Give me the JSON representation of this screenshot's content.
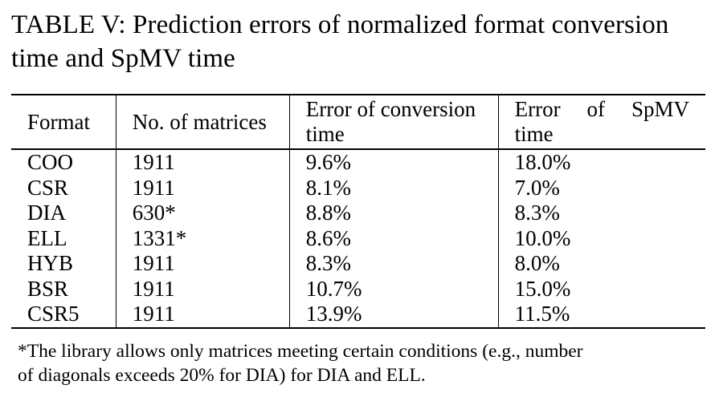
{
  "caption": {
    "line1": "TABLE V: Prediction errors of normalized format conversion",
    "line2": "time and SpMV time"
  },
  "table": {
    "headers": {
      "format": "Format",
      "matrices": "No. of matrices",
      "conversion_line1": "Error of conversion",
      "conversion_line2": "time",
      "spmv_word1": "Error",
      "spmv_word2": "of",
      "spmv_word3": "SpMV",
      "spmv_line2": "time"
    },
    "rows": [
      {
        "format": "COO",
        "matrices": "1911",
        "conversion": "9.6%",
        "spmv": "18.0%"
      },
      {
        "format": "CSR",
        "matrices": "1911",
        "conversion": "8.1%",
        "spmv": "7.0%"
      },
      {
        "format": "DIA",
        "matrices": "630*",
        "conversion": "8.8%",
        "spmv": "8.3%"
      },
      {
        "format": "ELL",
        "matrices": "1331*",
        "conversion": "8.6%",
        "spmv": "10.0%"
      },
      {
        "format": "HYB",
        "matrices": "1911",
        "conversion": "8.3%",
        "spmv": "8.0%"
      },
      {
        "format": "BSR",
        "matrices": "1911",
        "conversion": "10.7%",
        "spmv": "15.0%"
      },
      {
        "format": "CSR5",
        "matrices": "1911",
        "conversion": "13.9%",
        "spmv": "11.5%"
      }
    ]
  },
  "footnote": {
    "line1": "*The library allows only matrices meeting certain conditions (e.g., number",
    "line2": "of diagonals exceeds 20% for DIA) for DIA and ELL."
  }
}
